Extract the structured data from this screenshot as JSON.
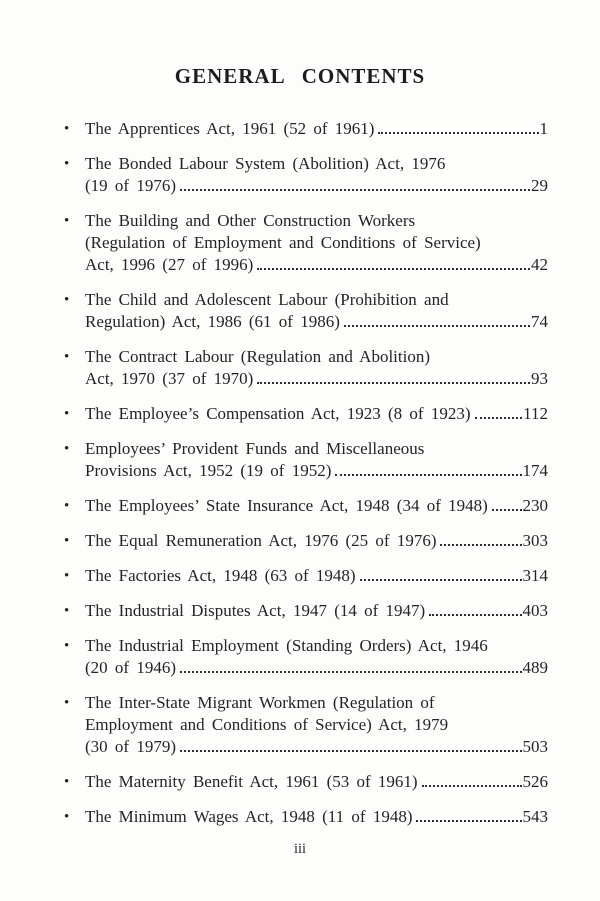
{
  "page": {
    "title": "GENERAL  CONTENTS",
    "folio": "iii",
    "background_color": "#fdfdfc",
    "text_color": "#242424"
  },
  "toc": {
    "bullet_icon": "•",
    "entries": [
      {
        "lines": [
          "The Apprentices Act, 1961 (52 of 1961)"
        ],
        "page": "1"
      },
      {
        "lines": [
          "The Bonded Labour System (Abolition) Act, 1976",
          "(19 of 1976)"
        ],
        "page": "29"
      },
      {
        "lines": [
          "The Building and Other Construction Workers",
          "(Regulation of Employment and Conditions of Service)",
          "Act, 1996 (27 of 1996)"
        ],
        "page": "42"
      },
      {
        "lines": [
          "The Child and Adolescent Labour (Prohibition and",
          "Regulation) Act, 1986 (61 of 1986)"
        ],
        "page": "74"
      },
      {
        "lines": [
          "The Contract Labour (Regulation and Abolition)",
          "Act, 1970 (37 of 1970)"
        ],
        "page": "93"
      },
      {
        "lines": [
          "The Employee’s Compensation Act, 1923 (8 of 1923)"
        ],
        "page": "112"
      },
      {
        "lines": [
          "Employees’ Provident Funds and Miscellaneous",
          "Provisions Act, 1952 (19 of 1952)"
        ],
        "page": "174"
      },
      {
        "lines": [
          "The Employees’ State Insurance Act, 1948 (34 of 1948)"
        ],
        "page": "230"
      },
      {
        "lines": [
          "The Equal Remuneration Act, 1976 (25 of 1976)"
        ],
        "page": "303"
      },
      {
        "lines": [
          "The Factories Act, 1948 (63 of 1948)"
        ],
        "page": "314"
      },
      {
        "lines": [
          "The Industrial Disputes Act, 1947 (14 of 1947)"
        ],
        "page": "403"
      },
      {
        "lines": [
          "The Industrial Employment (Standing Orders) Act, 1946",
          "(20 of 1946)"
        ],
        "page": "489"
      },
      {
        "lines": [
          "The Inter-State Migrant Workmen (Regulation of",
          "Employment and Conditions of Service) Act, 1979",
          "(30 of 1979)"
        ],
        "page": "503"
      },
      {
        "lines": [
          "The Maternity Benefit Act, 1961 (53 of 1961)"
        ],
        "page": "526"
      },
      {
        "lines": [
          "The Minimum Wages Act, 1948 (11 of 1948)"
        ],
        "page": "543"
      }
    ]
  }
}
